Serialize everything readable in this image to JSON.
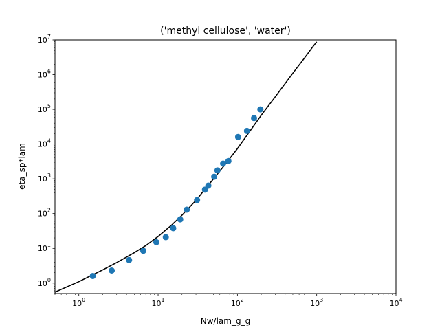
{
  "chart_data": {
    "type": "scatter",
    "title": "('methyl cellulose', 'water')",
    "xlabel": "Nw/lam_g_g",
    "ylabel": "eta_sp*lam",
    "xscale": "log",
    "yscale": "log",
    "xlim": [
      0.5,
      10000
    ],
    "ylim": [
      0.5,
      10000000
    ],
    "xticks": [
      {
        "value": 1,
        "base": "10",
        "exp": "0"
      },
      {
        "value": 10,
        "base": "10",
        "exp": "1"
      },
      {
        "value": 100,
        "base": "10",
        "exp": "2"
      },
      {
        "value": 1000,
        "base": "10",
        "exp": "3"
      },
      {
        "value": 10000,
        "base": "10",
        "exp": "4"
      }
    ],
    "yticks": [
      {
        "value": 1,
        "base": "10",
        "exp": "0"
      },
      {
        "value": 10,
        "base": "10",
        "exp": "1"
      },
      {
        "value": 100,
        "base": "10",
        "exp": "2"
      },
      {
        "value": 1000,
        "base": "10",
        "exp": "3"
      },
      {
        "value": 10000,
        "base": "10",
        "exp": "4"
      },
      {
        "value": 100000,
        "base": "10",
        "exp": "5"
      },
      {
        "value": 1000000,
        "base": "10",
        "exp": "6"
      },
      {
        "value": 10000000,
        "base": "10",
        "exp": "7"
      }
    ],
    "grid": false,
    "series": [
      {
        "kind": "scatter",
        "color": "#1f77b4",
        "points": [
          [
            1.5,
            1.6
          ],
          [
            2.6,
            2.3
          ],
          [
            4.3,
            4.6
          ],
          [
            6.5,
            8.5
          ],
          [
            9.5,
            15
          ],
          [
            12.5,
            21
          ],
          [
            15.5,
            38
          ],
          [
            19,
            68
          ],
          [
            23,
            130
          ],
          [
            31,
            245
          ],
          [
            39,
            490
          ],
          [
            43,
            640
          ],
          [
            51,
            1150
          ],
          [
            56,
            1750
          ],
          [
            66,
            2750
          ],
          [
            77,
            3250
          ],
          [
            102,
            16000
          ],
          [
            132,
            24000
          ],
          [
            162,
            56000
          ],
          [
            195,
            100000
          ]
        ]
      },
      {
        "kind": "line",
        "color": "#000000",
        "points": [
          [
            0.5,
            0.55
          ],
          [
            1,
            1.1
          ],
          [
            2,
            2.4
          ],
          [
            3,
            3.9
          ],
          [
            5,
            7.5
          ],
          [
            7,
            12
          ],
          [
            10,
            22
          ],
          [
            15,
            48
          ],
          [
            20,
            90
          ],
          [
            30,
            240
          ],
          [
            50,
            1000
          ],
          [
            70,
            2600
          ],
          [
            100,
            7400
          ],
          [
            200,
            68000
          ],
          [
            300,
            230000
          ],
          [
            500,
            1100000
          ],
          [
            700,
            3000000
          ],
          [
            900,
            6500000
          ],
          [
            1000,
            8800000
          ]
        ]
      }
    ]
  }
}
